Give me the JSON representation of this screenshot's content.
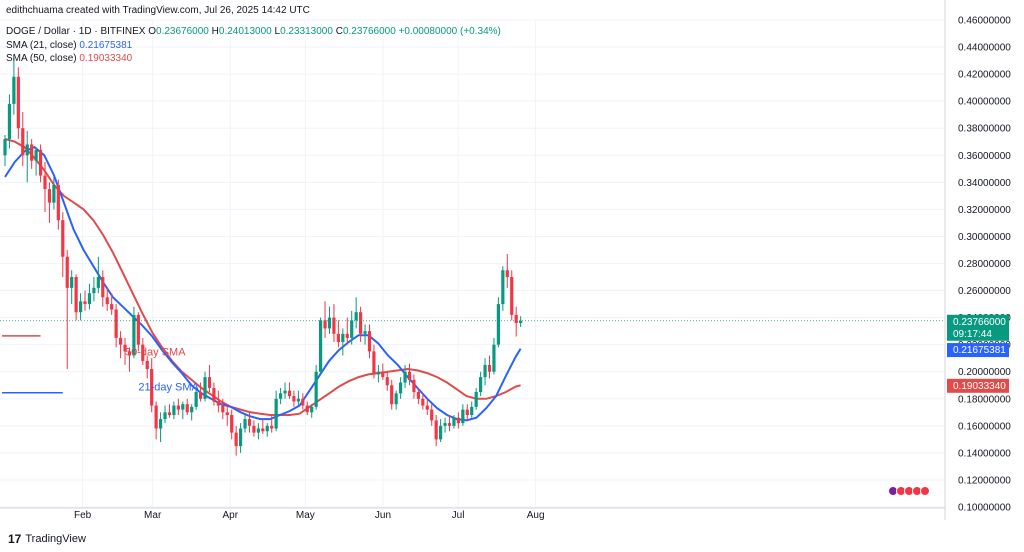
{
  "header": {
    "credit": "edithchuama created with TradingView.com, Jul 26, 2025 14:42 UTC",
    "symbol": "DOGE / Dollar · 1D · BITFINEX",
    "ohlc": {
      "o_label": "O",
      "o": "0.23676000",
      "h_label": "H",
      "h": "0.24013000",
      "l_label": "L",
      "l": "0.23313000",
      "c_label": "C",
      "c": "0.23766000",
      "change": "+0.00080000 (+0.34%)"
    },
    "sma21": {
      "label": "SMA (21, close)",
      "value": "0.21675381"
    },
    "sma50": {
      "label": "SMA (50, close)",
      "value": "0.19033340"
    }
  },
  "footer": {
    "brand": "TradingView",
    "logo": "17"
  },
  "colors": {
    "up": "#089981",
    "down": "#f23645",
    "sma21": "#2962ff",
    "sma50": "#e04b4b",
    "last": "#089981"
  },
  "chart_data": {
    "type": "candlestick",
    "y_axis": {
      "min": 0.1,
      "max": 0.46,
      "step": 0.02,
      "tick_labels": [
        "0.46000000",
        "0.44000000",
        "0.42000000",
        "0.40000000",
        "0.38000000",
        "0.36000000",
        "0.34000000",
        "0.32000000",
        "0.30000000",
        "0.28000000",
        "0.26000000",
        "0.24000000",
        "0.22000000",
        "0.20000000",
        "0.18000000",
        "0.16000000",
        "0.14000000",
        "0.12000000",
        "0.10000000"
      ]
    },
    "x_axis": {
      "tick_labels": [
        {
          "label": "Feb",
          "day": 31
        },
        {
          "label": "Mar",
          "day": 59
        },
        {
          "label": "Apr",
          "day": 90
        },
        {
          "label": "May",
          "day": 120
        },
        {
          "label": "Jun",
          "day": 151
        },
        {
          "label": "Jul",
          "day": 181
        },
        {
          "label": "Aug",
          "day": 212
        }
      ]
    },
    "last_price": {
      "value": 0.23766,
      "label": "0.23766000",
      "countdown": "09:17:44"
    },
    "sma21_last": {
      "value": 0.21675,
      "label": "0.21675381"
    },
    "sma50_last": {
      "value": 0.19033,
      "label": "0.19033340"
    },
    "annotations": [
      {
        "text": "50-day SMA",
        "x_day": 27,
        "y": 0.212,
        "color": "#e04b4b"
      },
      {
        "text": "21-day SMA",
        "x_day": 30,
        "y": 0.186,
        "color": "#2962ff"
      }
    ],
    "legend_marks": [
      {
        "series": "sma50",
        "x_day": [
          0,
          8
        ],
        "y": 0.2265
      },
      {
        "series": "sma21",
        "x_day": [
          0,
          13
        ],
        "y": 0.1845
      }
    ],
    "sma21_series": [
      [
        0,
        0.344
      ],
      [
        4,
        0.355
      ],
      [
        8,
        0.363
      ],
      [
        12,
        0.366
      ],
      [
        16,
        0.36
      ],
      [
        20,
        0.345
      ],
      [
        24,
        0.325
      ],
      [
        28,
        0.305
      ],
      [
        32,
        0.29
      ],
      [
        36,
        0.278
      ],
      [
        40,
        0.266
      ],
      [
        44,
        0.255
      ],
      [
        48,
        0.248
      ],
      [
        52,
        0.241
      ],
      [
        56,
        0.234
      ],
      [
        60,
        0.226
      ],
      [
        64,
        0.216
      ],
      [
        68,
        0.207
      ],
      [
        72,
        0.199
      ],
      [
        76,
        0.19
      ],
      [
        80,
        0.184
      ],
      [
        84,
        0.18
      ],
      [
        88,
        0.176
      ],
      [
        92,
        0.174
      ],
      [
        96,
        0.17
      ],
      [
        100,
        0.167
      ],
      [
        104,
        0.165
      ],
      [
        108,
        0.165
      ],
      [
        112,
        0.168
      ],
      [
        116,
        0.171
      ],
      [
        120,
        0.175
      ],
      [
        124,
        0.186
      ],
      [
        128,
        0.197
      ],
      [
        132,
        0.208
      ],
      [
        136,
        0.216
      ],
      [
        140,
        0.222
      ],
      [
        144,
        0.227
      ],
      [
        148,
        0.227
      ],
      [
        152,
        0.221
      ],
      [
        156,
        0.212
      ],
      [
        160,
        0.205
      ],
      [
        164,
        0.196
      ],
      [
        168,
        0.188
      ],
      [
        172,
        0.18
      ],
      [
        176,
        0.173
      ],
      [
        180,
        0.168
      ],
      [
        184,
        0.165
      ],
      [
        188,
        0.164
      ],
      [
        192,
        0.166
      ],
      [
        196,
        0.173
      ],
      [
        200,
        0.182
      ],
      [
        204,
        0.197
      ],
      [
        208,
        0.211
      ],
      [
        210,
        0.217
      ]
    ],
    "sma50_series": [
      [
        0,
        0.372
      ],
      [
        4,
        0.37
      ],
      [
        8,
        0.366
      ],
      [
        12,
        0.358
      ],
      [
        16,
        0.349
      ],
      [
        20,
        0.338
      ],
      [
        24,
        0.33
      ],
      [
        28,
        0.325
      ],
      [
        32,
        0.32
      ],
      [
        36,
        0.312
      ],
      [
        40,
        0.301
      ],
      [
        44,
        0.288
      ],
      [
        48,
        0.273
      ],
      [
        52,
        0.258
      ],
      [
        56,
        0.243
      ],
      [
        60,
        0.229
      ],
      [
        64,
        0.218
      ],
      [
        68,
        0.208
      ],
      [
        72,
        0.2
      ],
      [
        76,
        0.194
      ],
      [
        80,
        0.188
      ],
      [
        84,
        0.183
      ],
      [
        88,
        0.178
      ],
      [
        92,
        0.174
      ],
      [
        96,
        0.172
      ],
      [
        100,
        0.17
      ],
      [
        104,
        0.169
      ],
      [
        108,
        0.168
      ],
      [
        112,
        0.168
      ],
      [
        116,
        0.168
      ],
      [
        120,
        0.169
      ],
      [
        124,
        0.174
      ],
      [
        128,
        0.179
      ],
      [
        132,
        0.184
      ],
      [
        136,
        0.189
      ],
      [
        140,
        0.193
      ],
      [
        144,
        0.196
      ],
      [
        148,
        0.198
      ],
      [
        152,
        0.199
      ],
      [
        156,
        0.2
      ],
      [
        160,
        0.201
      ],
      [
        164,
        0.202
      ],
      [
        168,
        0.201
      ],
      [
        172,
        0.199
      ],
      [
        176,
        0.196
      ],
      [
        180,
        0.192
      ],
      [
        184,
        0.187
      ],
      [
        188,
        0.182
      ],
      [
        192,
        0.18
      ],
      [
        196,
        0.18
      ],
      [
        200,
        0.182
      ],
      [
        204,
        0.185
      ],
      [
        208,
        0.189
      ],
      [
        210,
        0.19
      ]
    ],
    "candles": [
      [
        0,
        0.36,
        0.375,
        0.352,
        0.372
      ],
      [
        1,
        0.372,
        0.405,
        0.365,
        0.398
      ],
      [
        2,
        0.398,
        0.432,
        0.39,
        0.418
      ],
      [
        3,
        0.418,
        0.425,
        0.372,
        0.38
      ],
      [
        4,
        0.38,
        0.392,
        0.352,
        0.36
      ],
      [
        5,
        0.36,
        0.378,
        0.34,
        0.368
      ],
      [
        6,
        0.368,
        0.372,
        0.35,
        0.356
      ],
      [
        7,
        0.356,
        0.366,
        0.345,
        0.364
      ],
      [
        8,
        0.364,
        0.368,
        0.34,
        0.345
      ],
      [
        9,
        0.345,
        0.355,
        0.318,
        0.335
      ],
      [
        10,
        0.335,
        0.34,
        0.31,
        0.325
      ],
      [
        11,
        0.325,
        0.345,
        0.32,
        0.338
      ],
      [
        12,
        0.338,
        0.342,
        0.305,
        0.312
      ],
      [
        13,
        0.312,
        0.318,
        0.27,
        0.285
      ],
      [
        14,
        0.285,
        0.29,
        0.202,
        0.262
      ],
      [
        15,
        0.262,
        0.275,
        0.25,
        0.27
      ],
      [
        16,
        0.27,
        0.272,
        0.238,
        0.244
      ],
      [
        17,
        0.244,
        0.258,
        0.238,
        0.252
      ],
      [
        18,
        0.252,
        0.26,
        0.245,
        0.25
      ],
      [
        19,
        0.25,
        0.265,
        0.246,
        0.258
      ],
      [
        20,
        0.258,
        0.27,
        0.252,
        0.262
      ],
      [
        21,
        0.262,
        0.285,
        0.258,
        0.27
      ],
      [
        22,
        0.27,
        0.275,
        0.248,
        0.255
      ],
      [
        23,
        0.255,
        0.262,
        0.245,
        0.25
      ],
      [
        24,
        0.25,
        0.258,
        0.242,
        0.246
      ],
      [
        25,
        0.246,
        0.25,
        0.218,
        0.225
      ],
      [
        26,
        0.225,
        0.23,
        0.21,
        0.22
      ],
      [
        27,
        0.22,
        0.225,
        0.205,
        0.215
      ],
      [
        28,
        0.215,
        0.218,
        0.2,
        0.212
      ],
      [
        29,
        0.212,
        0.248,
        0.21,
        0.242
      ],
      [
        30,
        0.242,
        0.244,
        0.215,
        0.22
      ],
      [
        31,
        0.22,
        0.225,
        0.205,
        0.208
      ],
      [
        32,
        0.208,
        0.212,
        0.195,
        0.202
      ],
      [
        33,
        0.202,
        0.21,
        0.17,
        0.175
      ],
      [
        34,
        0.175,
        0.178,
        0.15,
        0.158
      ],
      [
        35,
        0.158,
        0.17,
        0.148,
        0.165
      ],
      [
        36,
        0.165,
        0.175,
        0.162,
        0.17
      ],
      [
        37,
        0.17,
        0.176,
        0.166,
        0.168
      ],
      [
        38,
        0.168,
        0.178,
        0.165,
        0.175
      ],
      [
        39,
        0.175,
        0.18,
        0.168,
        0.172
      ],
      [
        40,
        0.172,
        0.178,
        0.165,
        0.176
      ],
      [
        41,
        0.176,
        0.18,
        0.168,
        0.17
      ],
      [
        42,
        0.17,
        0.176,
        0.164,
        0.174
      ],
      [
        43,
        0.174,
        0.188,
        0.172,
        0.185
      ],
      [
        44,
        0.185,
        0.192,
        0.178,
        0.18
      ],
      [
        45,
        0.18,
        0.2,
        0.178,
        0.196
      ],
      [
        46,
        0.196,
        0.205,
        0.185,
        0.188
      ],
      [
        47,
        0.188,
        0.192,
        0.175,
        0.178
      ],
      [
        48,
        0.178,
        0.186,
        0.17,
        0.175
      ],
      [
        49,
        0.175,
        0.18,
        0.165,
        0.17
      ],
      [
        50,
        0.17,
        0.176,
        0.16,
        0.168
      ],
      [
        51,
        0.168,
        0.172,
        0.15,
        0.155
      ],
      [
        52,
        0.155,
        0.16,
        0.138,
        0.145
      ],
      [
        53,
        0.145,
        0.162,
        0.14,
        0.158
      ],
      [
        54,
        0.158,
        0.168,
        0.155,
        0.165
      ],
      [
        55,
        0.165,
        0.17,
        0.155,
        0.16
      ],
      [
        56,
        0.16,
        0.164,
        0.152,
        0.155
      ],
      [
        57,
        0.155,
        0.162,
        0.15,
        0.158
      ],
      [
        58,
        0.158,
        0.165,
        0.154,
        0.156
      ],
      [
        59,
        0.156,
        0.162,
        0.152,
        0.16
      ],
      [
        60,
        0.16,
        0.168,
        0.155,
        0.158
      ],
      [
        61,
        0.158,
        0.186,
        0.156,
        0.18
      ],
      [
        62,
        0.18,
        0.188,
        0.176,
        0.184
      ],
      [
        63,
        0.184,
        0.192,
        0.18,
        0.186
      ],
      [
        64,
        0.186,
        0.192,
        0.18,
        0.182
      ],
      [
        65,
        0.182,
        0.186,
        0.174,
        0.178
      ],
      [
        66,
        0.178,
        0.186,
        0.175,
        0.18
      ],
      [
        67,
        0.18,
        0.184,
        0.172,
        0.175
      ],
      [
        68,
        0.175,
        0.178,
        0.168,
        0.17
      ],
      [
        69,
        0.17,
        0.176,
        0.166,
        0.174
      ],
      [
        70,
        0.174,
        0.205,
        0.172,
        0.2
      ],
      [
        71,
        0.2,
        0.24,
        0.198,
        0.238
      ],
      [
        72,
        0.238,
        0.252,
        0.225,
        0.232
      ],
      [
        73,
        0.232,
        0.248,
        0.228,
        0.24
      ],
      [
        74,
        0.24,
        0.25,
        0.222,
        0.228
      ],
      [
        75,
        0.228,
        0.238,
        0.218,
        0.222
      ],
      [
        76,
        0.222,
        0.232,
        0.212,
        0.228
      ],
      [
        77,
        0.228,
        0.24,
        0.22,
        0.225
      ],
      [
        78,
        0.225,
        0.245,
        0.22,
        0.238
      ],
      [
        79,
        0.238,
        0.255,
        0.232,
        0.244
      ],
      [
        80,
        0.244,
        0.248,
        0.222,
        0.228
      ],
      [
        81,
        0.228,
        0.235,
        0.22,
        0.23
      ],
      [
        82,
        0.23,
        0.235,
        0.21,
        0.215
      ],
      [
        83,
        0.215,
        0.22,
        0.195,
        0.198
      ],
      [
        84,
        0.198,
        0.205,
        0.192,
        0.2
      ],
      [
        85,
        0.2,
        0.206,
        0.194,
        0.196
      ],
      [
        86,
        0.196,
        0.2,
        0.186,
        0.19
      ],
      [
        87,
        0.19,
        0.194,
        0.172,
        0.176
      ],
      [
        88,
        0.176,
        0.186,
        0.172,
        0.184
      ],
      [
        89,
        0.184,
        0.196,
        0.18,
        0.192
      ],
      [
        90,
        0.192,
        0.205,
        0.188,
        0.2
      ],
      [
        91,
        0.2,
        0.206,
        0.19,
        0.194
      ],
      [
        92,
        0.194,
        0.198,
        0.18,
        0.185
      ],
      [
        93,
        0.185,
        0.188,
        0.176,
        0.18
      ],
      [
        94,
        0.18,
        0.184,
        0.172,
        0.175
      ],
      [
        95,
        0.175,
        0.18,
        0.168,
        0.172
      ],
      [
        96,
        0.172,
        0.176,
        0.16,
        0.164
      ],
      [
        97,
        0.164,
        0.168,
        0.145,
        0.15
      ],
      [
        98,
        0.15,
        0.165,
        0.148,
        0.16
      ],
      [
        99,
        0.16,
        0.166,
        0.155,
        0.162
      ],
      [
        100,
        0.162,
        0.168,
        0.156,
        0.16
      ],
      [
        101,
        0.16,
        0.168,
        0.158,
        0.166
      ],
      [
        102,
        0.166,
        0.17,
        0.158,
        0.162
      ],
      [
        103,
        0.162,
        0.176,
        0.16,
        0.172
      ],
      [
        104,
        0.172,
        0.176,
        0.164,
        0.168
      ],
      [
        105,
        0.168,
        0.178,
        0.166,
        0.174
      ],
      [
        106,
        0.174,
        0.188,
        0.172,
        0.185
      ],
      [
        107,
        0.185,
        0.2,
        0.182,
        0.196
      ],
      [
        108,
        0.196,
        0.21,
        0.19,
        0.205
      ],
      [
        109,
        0.205,
        0.212,
        0.195,
        0.2
      ],
      [
        110,
        0.2,
        0.225,
        0.198,
        0.22
      ],
      [
        111,
        0.22,
        0.255,
        0.218,
        0.25
      ],
      [
        112,
        0.25,
        0.278,
        0.245,
        0.275
      ],
      [
        113,
        0.275,
        0.287,
        0.262,
        0.27
      ],
      [
        114,
        0.27,
        0.275,
        0.238,
        0.242
      ],
      [
        115,
        0.242,
        0.248,
        0.226,
        0.236
      ],
      [
        116,
        0.236,
        0.241,
        0.233,
        0.2377
      ]
    ]
  }
}
